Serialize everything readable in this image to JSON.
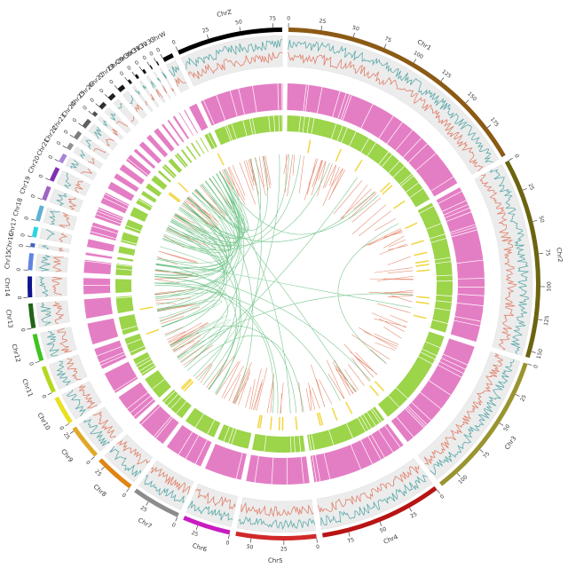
{
  "chart_data": {
    "type": "circos",
    "chromosomes": [
      {
        "name": "Chr1",
        "length": 200,
        "color": "#8b5a14",
        "ticks": [
          0,
          25,
          50,
          75,
          100,
          125,
          150,
          175
        ]
      },
      {
        "name": "Chr2",
        "length": 155,
        "color": "#6b6410",
        "ticks": [
          0,
          25,
          50,
          75,
          100,
          125,
          150
        ]
      },
      {
        "name": "Chr3",
        "length": 115,
        "color": "#9a9430",
        "ticks": [
          0,
          25,
          50,
          75,
          100
        ]
      },
      {
        "name": "Chr4",
        "length": 95,
        "color": "#b81414",
        "ticks": [
          0,
          25,
          50,
          75
        ]
      },
      {
        "name": "Chr5",
        "length": 62,
        "color": "#d02828",
        "ticks": [
          0,
          25,
          50
        ]
      },
      {
        "name": "Chr6",
        "length": 37,
        "color": "#c81cc0",
        "ticks": [
          0,
          25
        ]
      },
      {
        "name": "Chr7",
        "length": 38,
        "color": "#8c8c8c",
        "ticks": [
          0,
          25
        ]
      },
      {
        "name": "Chr8",
        "length": 31,
        "color": "#e08414",
        "ticks": [
          0,
          25
        ]
      },
      {
        "name": "Chr9",
        "length": 27,
        "color": "#e0a828",
        "ticks": [
          0,
          25
        ]
      },
      {
        "name": "Chr10",
        "length": 22,
        "color": "#e8e020",
        "ticks": [
          0
        ]
      },
      {
        "name": "Chr11",
        "length": 21,
        "color": "#b4d820",
        "ticks": [
          0
        ]
      },
      {
        "name": "Chr12",
        "length": 21,
        "color": "#40c420",
        "ticks": [
          0
        ]
      },
      {
        "name": "Chr13",
        "length": 19,
        "color": "#206414",
        "ticks": [
          0
        ]
      },
      {
        "name": "Chr14",
        "length": 16,
        "color": "#10148c",
        "ticks": [
          0
        ]
      },
      {
        "name": "Chr15",
        "length": 13,
        "color": "#6084e0",
        "ticks": [
          0
        ]
      },
      {
        "name": "Chr16",
        "length": 3,
        "color": "#4064c0",
        "ticks": [
          0
        ]
      },
      {
        "name": "Chr17",
        "length": 8,
        "color": "#30d4e4",
        "ticks": [
          0
        ]
      },
      {
        "name": "Chr18",
        "length": 12,
        "color": "#60b0d4",
        "ticks": [
          0
        ]
      },
      {
        "name": "Chr19",
        "length": 11,
        "color": "#a064c4",
        "ticks": [
          0
        ]
      },
      {
        "name": "Chr20",
        "length": 11,
        "color": "#8030b0",
        "ticks": [
          0
        ]
      },
      {
        "name": "Chr21",
        "length": 7,
        "color": "#a884d8",
        "ticks": [
          0
        ]
      },
      {
        "name": "Chr22",
        "length": 5,
        "color": "#909090",
        "ticks": [
          0
        ]
      },
      {
        "name": "Chr23",
        "length": 6,
        "color": "#7c7c7c",
        "ticks": [
          0
        ]
      },
      {
        "name": "Chr24",
        "length": 7,
        "color": "#606060",
        "ticks": [
          0
        ]
      },
      {
        "name": "Chr25",
        "length": 3,
        "color": "#505050",
        "ticks": [
          0
        ]
      },
      {
        "name": "Chr26",
        "length": 5,
        "color": "#303030",
        "ticks": [
          0
        ]
      },
      {
        "name": "Chr27",
        "length": 5,
        "color": "#202020",
        "ticks": [
          0
        ]
      },
      {
        "name": "Chr28",
        "length": 5,
        "color": "#181818",
        "ticks": [
          0
        ]
      },
      {
        "name": "Chr29",
        "length": 2,
        "color": "#101010",
        "ticks": [
          0
        ]
      },
      {
        "name": "Chr30",
        "length": 2,
        "color": "#101010",
        "ticks": [
          0
        ]
      },
      {
        "name": "Chr31",
        "length": 2,
        "color": "#101010",
        "ticks": [
          0
        ]
      },
      {
        "name": "Chr32",
        "length": 1,
        "color": "#101010",
        "ticks": [
          0
        ]
      },
      {
        "name": "Chr33",
        "length": 1,
        "color": "#101010",
        "ticks": [
          0
        ]
      },
      {
        "name": "ChrW",
        "length": 8,
        "color": "#080808",
        "ticks": [
          0
        ]
      },
      {
        "name": "ChrZ",
        "length": 82,
        "color": "#000000",
        "ticks": [
          0,
          25,
          50,
          75
        ]
      }
    ]
  }
}
